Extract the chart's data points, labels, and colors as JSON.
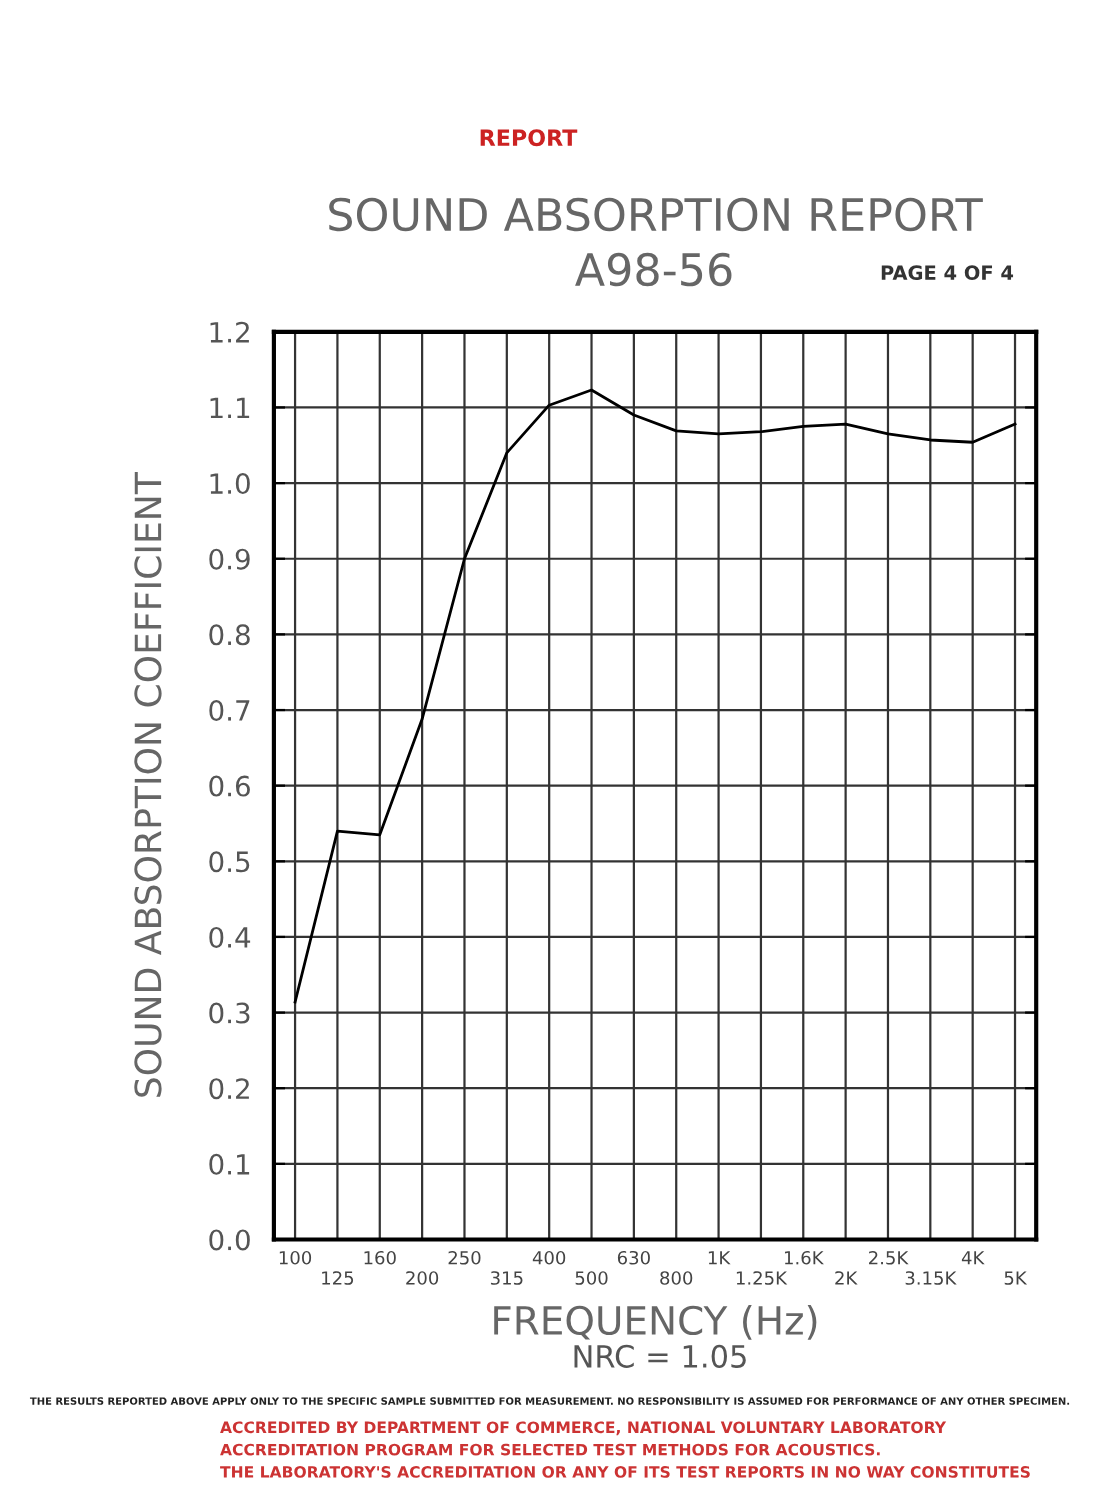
{
  "chart_data": {
    "type": "line",
    "title": "SOUND ABSORPTION REPORT",
    "subtitle": "A98-56",
    "xlabel": "FREQUENCY (Hz)",
    "ylabel": "SOUND ABSORPTION COEFFICIENT",
    "categories": [
      "100",
      "125",
      "160",
      "200",
      "250",
      "315",
      "400",
      "500",
      "630",
      "800",
      "1K",
      "1.25K",
      "1.6K",
      "2K",
      "2.5K",
      "3.15K",
      "4K",
      "5K"
    ],
    "series": [
      {
        "color": "#000000",
        "values": [
          0.314,
          0.54,
          0.535,
          0.688,
          0.9,
          1.04,
          1.103,
          1.123,
          1.09,
          1.069,
          1.065,
          1.068,
          1.075,
          1.078,
          1.065,
          1.057,
          1.054,
          1.078
        ]
      }
    ],
    "ylim": [
      0,
      1.2
    ],
    "yticks": [
      {
        "value": 0,
        "label": "0.0"
      },
      {
        "value": 0.1,
        "label": "0.1"
      },
      {
        "value": 0.2,
        "label": "0.2"
      },
      {
        "value": 0.3,
        "label": "0.3"
      },
      {
        "value": 0.4,
        "label": "0.4"
      },
      {
        "value": 0.5,
        "label": "0.5"
      },
      {
        "value": 0.6,
        "label": "0.6"
      },
      {
        "value": 0.7,
        "label": "0.7"
      },
      {
        "value": 0.8,
        "label": "0.8"
      },
      {
        "value": 0.9,
        "label": "0.9"
      },
      {
        "value": 1.0,
        "label": "1.0"
      },
      {
        "value": 1.1,
        "label": "1.1"
      },
      {
        "value": 1.2,
        "label": "1.2"
      }
    ],
    "grid": true,
    "marker": "none",
    "line_style": "solid",
    "annotations": [
      "REPORT",
      "PAGE 4 OF 4",
      "NRC = 1.05",
      "THE RESULTS REPORTED ABOVE APPLY ONLY TO THE SPECIFIC SAMPLE SUBMITTED FOR MEASUREMENT. NO RESPONSIBILITY IS ASSUMED FOR PERFORMANCE OF ANY OTHER SPECIMEN.",
      "ACCREDITED BY DEPARTMENT OF COMMERCE, NATIONAL VOLUNTARY LABORATORY",
      "ACCREDITATION PROGRAM FOR SELECTED TEST METHODS FOR ACOUSTICS.",
      "THE LABORATORY'S ACCREDITATION OR ANY OF ITS TEST REPORTS IN NO WAY CONSTITUTES"
    ]
  }
}
